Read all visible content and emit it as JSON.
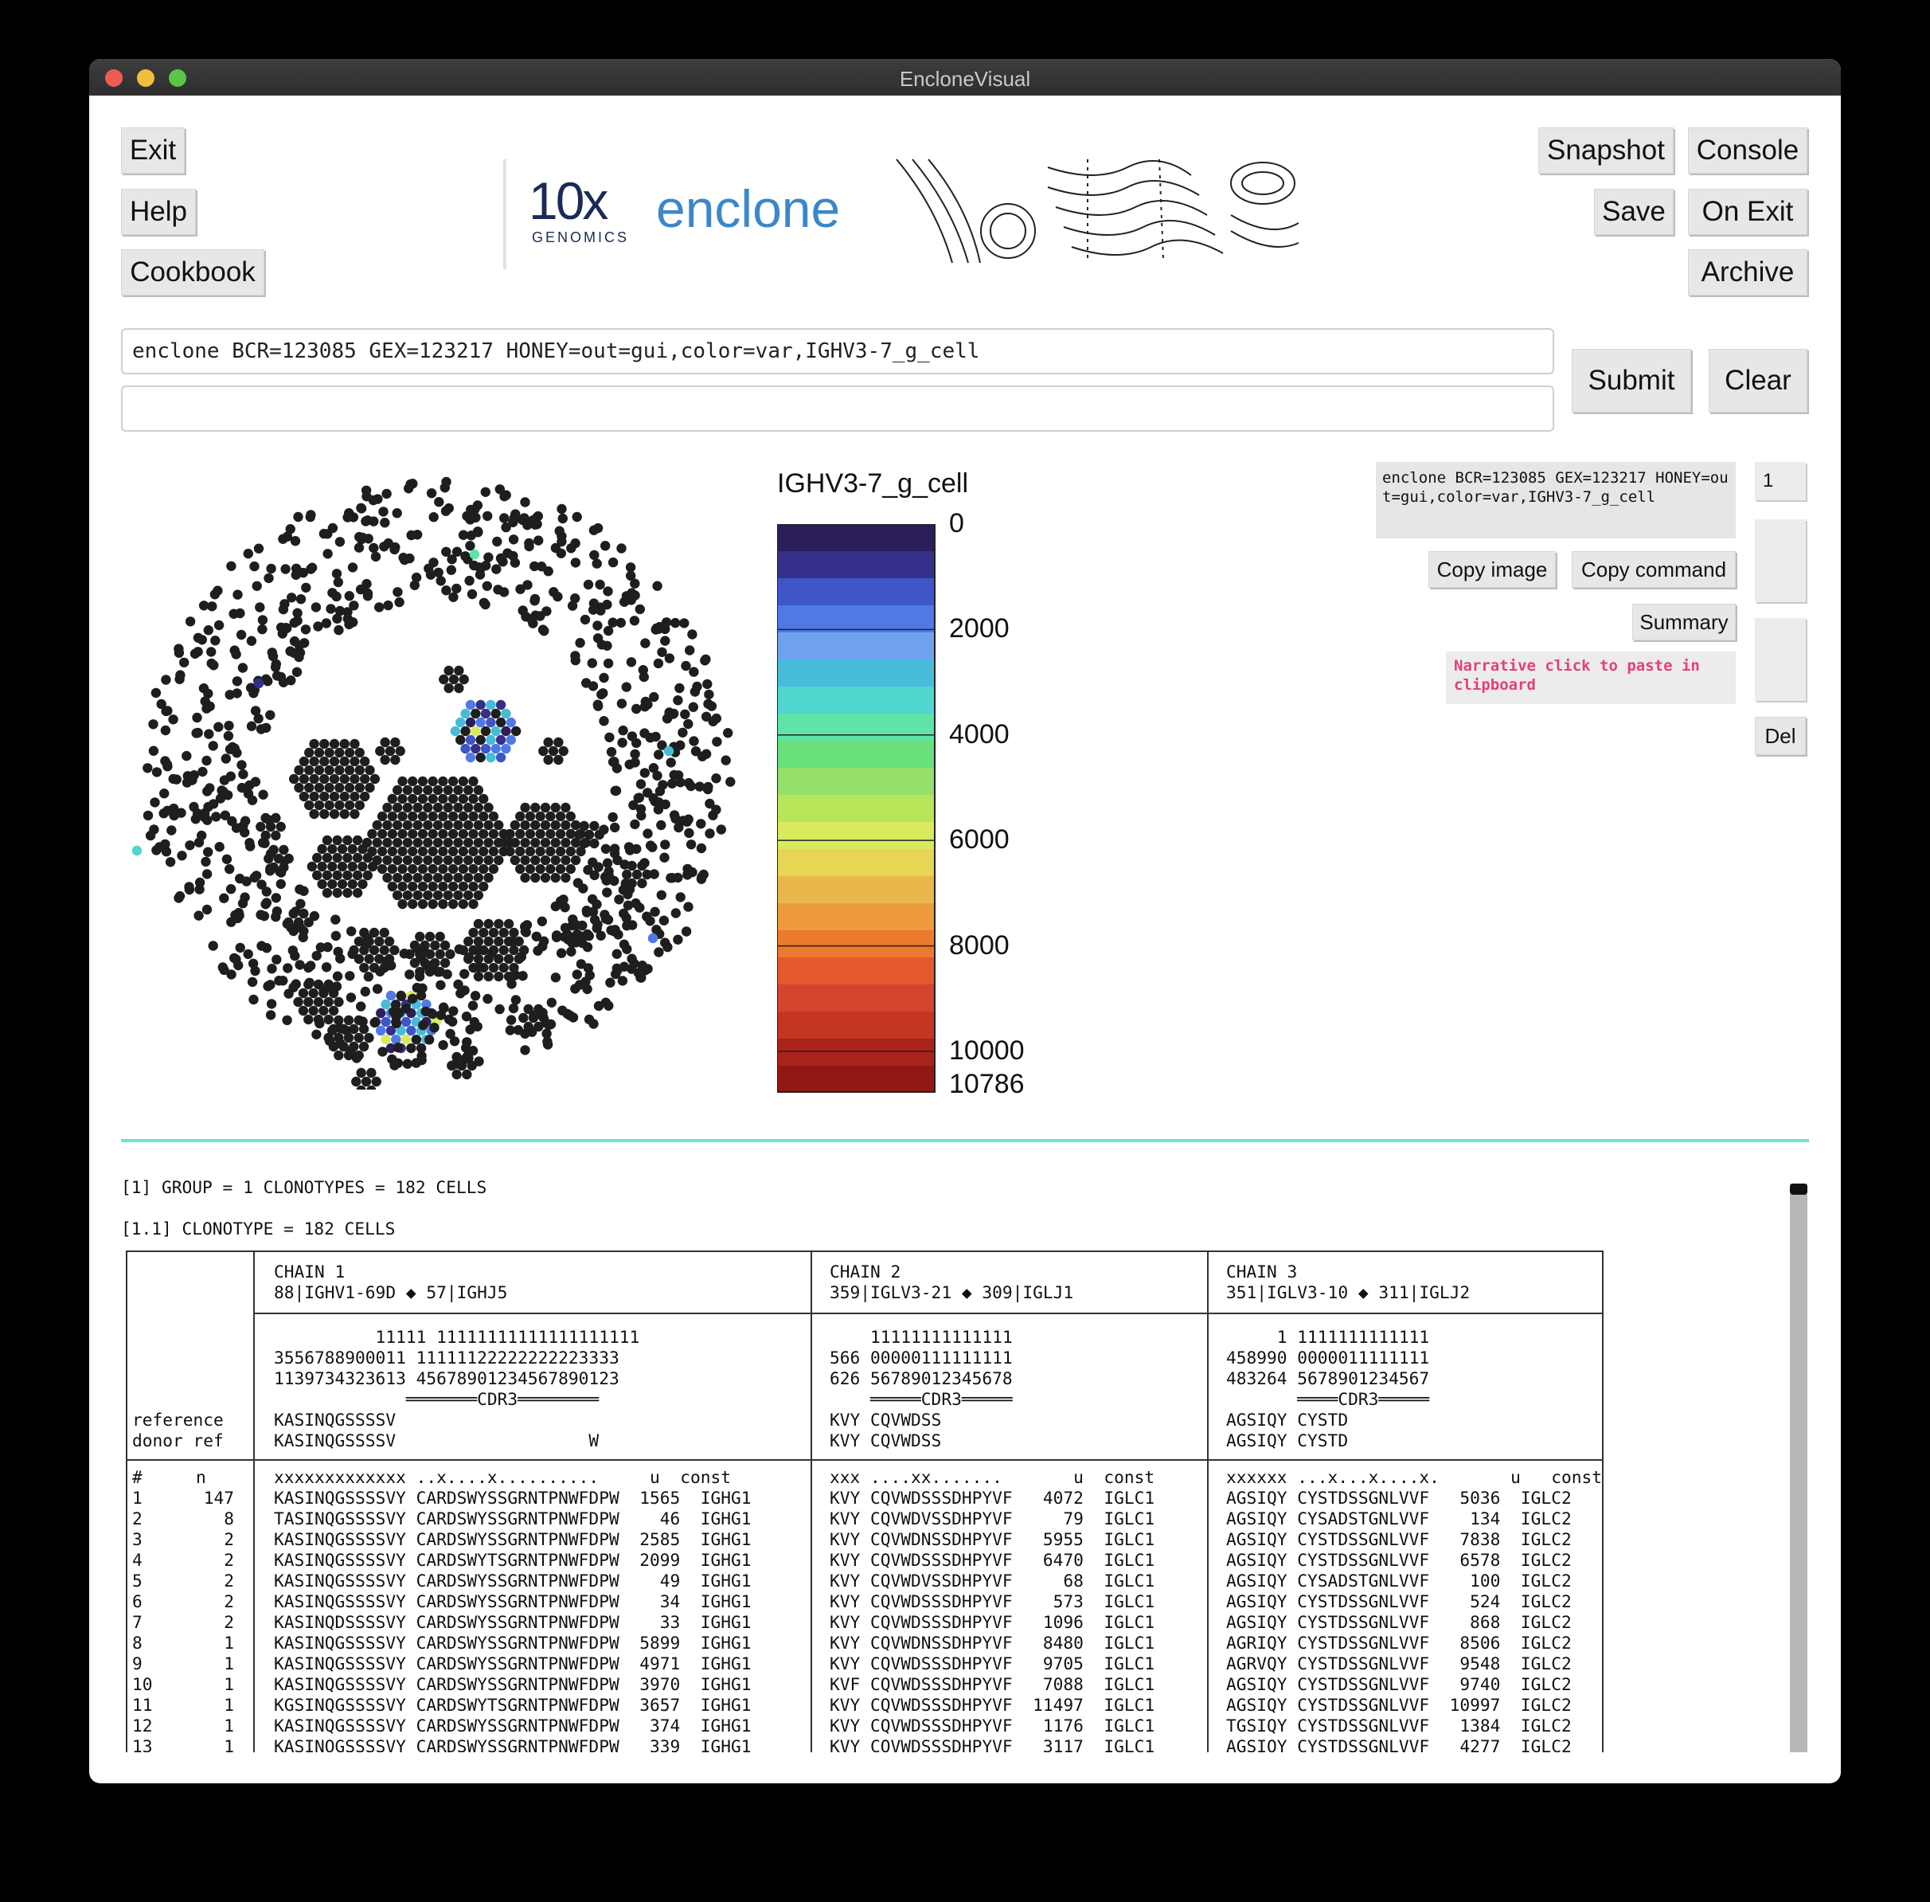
{
  "window": {
    "title": "EncloneVisual"
  },
  "buttons": {
    "exit": "Exit",
    "help": "Help",
    "cookbook": "Cookbook",
    "snapshot": "Snapshot",
    "console": "Console",
    "save": "Save",
    "on_exit": "On Exit",
    "archive": "Archive",
    "submit": "Submit",
    "clear": "Clear",
    "copy_image": "Copy image",
    "copy_command": "Copy command",
    "summary": "Summary",
    "del": "Del"
  },
  "logo": {
    "brand": "10x",
    "brand_sub": "GENOMICS",
    "product": "enclone"
  },
  "command": {
    "value": "enclone BCR=123085 GEX=123217 HONEY=out=gui,color=var,IGHV3-7_g_cell",
    "second_value": ""
  },
  "side": {
    "command_echo": "enclone BCR=123085 GEX=123217 HONEY=out=gui,color=var,IGHV3-7_g_cell",
    "history_index": "1",
    "narrative": "Narrative  click to paste in clipboard"
  },
  "legend": {
    "title": "IGHV3-7_g_cell",
    "ticks": [
      "0",
      "2000",
      "4000",
      "6000",
      "8000",
      "10000",
      "10786"
    ],
    "colors": [
      "#2b1e5b",
      "#34308a",
      "#3f55c8",
      "#4f7ae6",
      "#6fa2ee",
      "#48bbd8",
      "#4fd6cf",
      "#5fe3a8",
      "#6ae07b",
      "#94df6a",
      "#b7e65a",
      "#d9ea5c",
      "#e7d554",
      "#e8b84c",
      "#ee9a3c",
      "#ec7a2c",
      "#e4582c",
      "#d5442e",
      "#c43524",
      "#a9231a",
      "#8f1812"
    ]
  },
  "output": {
    "group_line": "[1] GROUP = 1 CLONOTYPES = 182 CELLS",
    "clonotype_line": "[1.1] CLONOTYPE = 182 CELLS",
    "chains": [
      {
        "name": "CHAIN 1",
        "genes": "88|IGHV1-69D ◆ 57|IGHJ5",
        "pos1": "          11111 11111111111111111111",
        "pos2": "3556788900011 11111122222222223333",
        "pos3": "1139734323613 45678901234567890123",
        "cdr3": "             ═══════CDR3════════",
        "ref": "KASINQGSSSSV  ",
        "donor": "KASINQGSSSSV                   W",
        "header": "xxxxxxxxxxxxx ..x....x..........     u  const"
      },
      {
        "name": "CHAIN 2",
        "genes": "359|IGLV3-21 ◆ 309|IGLJ1",
        "pos1": "    11111111111111",
        "pos2": "566 00000111111111",
        "pos3": "626 56789012345678",
        "cdr3": "    ═════CDR3═════",
        "ref": "KVY CQVWDSS",
        "donor": "KVY CQVWDSS",
        "header": "xxx ....xx.......       u  const"
      },
      {
        "name": "CHAIN 3",
        "genes": "351|IGLV3-10 ◆ 311|IGLJ2",
        "pos1": "     1 1111111111111",
        "pos2": "458990 0000011111111",
        "pos3": "483264 5678901234567",
        "cdr3": "       ════CDR3═════",
        "ref": "AGSIQY CYSTD",
        "donor": "AGSIQY CYSTD",
        "header": "xxxxxx ...x...x....x.       u   const"
      }
    ],
    "row_labels": {
      "reference": "reference",
      "donor": "donor ref",
      "idx": "#",
      "n": "n"
    },
    "rows": [
      {
        "i": "1",
        "n": "147",
        "c1": "KASINQGSSSSVY CARDSWYSSGRNTPNWFDPW  1565  IGHG1",
        "c2": "KVY CQVWDSSSDHPYVF   4072  IGLC1",
        "c3": "AGSIQY CYSTDSSGNLVVF   5036  IGLC2"
      },
      {
        "i": "2",
        "n": "8",
        "c1": "TASINQGSSSSVY CARDSWYSSGRNTPNWFDPW    46  IGHG1",
        "c2": "KVY CQVWDVSSDHPYVF     79  IGLC1",
        "c3": "AGSIQY CYSADSTGNLVVF    134  IGLC2"
      },
      {
        "i": "3",
        "n": "2",
        "c1": "KASINQGSSSSVY CARDSWYSSGRNTPNWFDPW  2585  IGHG1",
        "c2": "KVY CQVWDNSSDHPYVF   5955  IGLC1",
        "c3": "AGSIQY CYSTDSSGNLVVF   7838  IGLC2"
      },
      {
        "i": "4",
        "n": "2",
        "c1": "KASINQGSSSSVY CARDSWYTSGRNTPNWFDPW  2099  IGHG1",
        "c2": "KVY CQVWDSSSDHPYVF   6470  IGLC1",
        "c3": "AGSIQY CYSTDSSGNLVVF   6578  IGLC2"
      },
      {
        "i": "5",
        "n": "2",
        "c1": "KASINQGSSSSVY CARDSWYSSGRNTPNWFDPW    49  IGHG1",
        "c2": "KVY CQVWDVSSDHPYVF     68  IGLC1",
        "c3": "AGSIQY CYSADSTGNLVVF    100  IGLC2"
      },
      {
        "i": "6",
        "n": "2",
        "c1": "KASINQGSSSSVY CARDSWYSSGRNTPNWFDPW    34  IGHG1",
        "c2": "KVY CQVWDSSSDHPYVF    573  IGLC1",
        "c3": "AGSIQY CYSTDSSGNLVVF    524  IGLC2"
      },
      {
        "i": "7",
        "n": "2",
        "c1": "KASINQDSSSSVY CARDSWYSSGRNTPNWFDPW    33  IGHG1",
        "c2": "KVY CQVWDSSSDHPYVF   1096  IGLC1",
        "c3": "AGSIQY CYSTDSSGNLVVF    868  IGLC2"
      },
      {
        "i": "8",
        "n": "1",
        "c1": "KASINQGSSSSVY CARDSWYSSGRNTPNWFDPW  5899  IGHG1",
        "c2": "KVY CQVWDNSSDHPYVF   8480  IGLC1",
        "c3": "AGRIQY CYSTDSSGNLVVF   8506  IGLC2"
      },
      {
        "i": "9",
        "n": "1",
        "c1": "KASINQGSSSSVY CARDSWYSSGRNTPNWFDPW  4971  IGHG1",
        "c2": "KVY CQVWDSSSDHPYVF   9705  IGLC1",
        "c3": "AGRVQY CYSTDSSGNLVVF   9548  IGLC2"
      },
      {
        "i": "10",
        "n": "1",
        "c1": "KASINQGSSSSVY CARDSWYSSGRNTPNWFDPW  3970  IGHG1",
        "c2": "KVF CQVWDSSSDHPYVF   7088  IGLC1",
        "c3": "AGSIQY CYSTDSSGNLVVF   9740  IGLC2"
      },
      {
        "i": "11",
        "n": "1",
        "c1": "KGSINQGSSSSVY CARDSWYTSGRNTPNWFDPW  3657  IGHG1",
        "c2": "KVY CQVWDSSSDHPYVF  11497  IGLC1",
        "c3": "AGSIQY CYSTDSSGNLVVF  10997  IGLC2"
      },
      {
        "i": "12",
        "n": "1",
        "c1": "KASINQGSSSSVY CARDSWYSSGRNTPNWFDPW   374  IGHG1",
        "c2": "KVY CQVWDSSSDHPYVF   1176  IGLC1",
        "c3": "TGSIQY CYSTDSSGNLVVF   1384  IGLC2"
      },
      {
        "i": "13",
        "n": "1",
        "c1": "KASINQGSSSSVY CARDSWYSSGRNTPNWFDPW   339  IGHG1",
        "c2": "KVY CQVWDSSSDHPYVF   3117  IGLC1",
        "c3": "AGSIQY CYSTDSSGNLVVF   4277  IGLC2"
      }
    ]
  }
}
